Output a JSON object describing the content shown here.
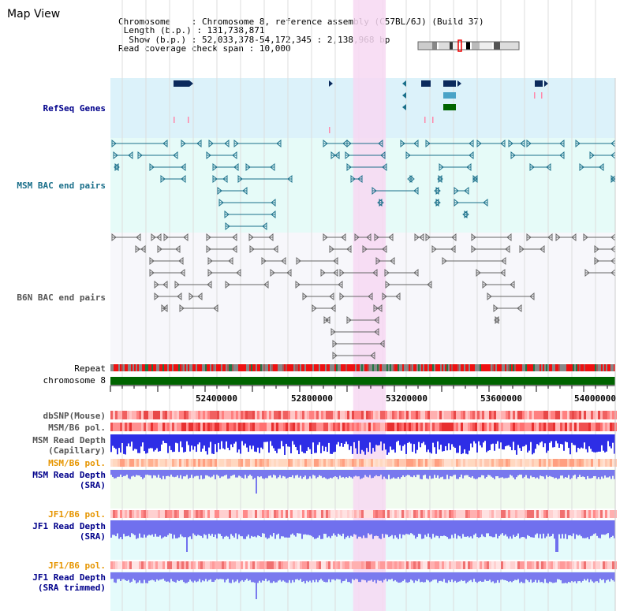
{
  "page": {
    "title": "Map View"
  },
  "header": {
    "chromosome_label": "Chromosome",
    "chromosome_value": "Chromosome 8, reference assembly (C57BL/6J) (Build 37)",
    "length_label": "Length (b.p.)",
    "length_value": "131,738,871",
    "show_label": "Show (b.p.)",
    "show_value": "52,033,378-54,172,345 : 2,138,968 bp",
    "coverage_label": "Read coverage check span",
    "coverage_value": "10,000"
  },
  "tracks": {
    "refseq": "RefSeq Genes",
    "msm_bac": "MSM BAC end pairs",
    "b6n_bac": "B6N BAC end pairs",
    "repeat": "Repeat",
    "chromosome": "chromosome 8",
    "dbsnp": "dbSNP(Mouse)",
    "msm_b6_pol_1": "MSM/B6 pol.",
    "msm_read_depth_cap_1": "MSM Read Depth",
    "msm_read_depth_cap_2": "(Capillary)",
    "msm_b6_pol_2": "MSM/B6 pol.",
    "msm_read_depth_sra_1": "MSM Read Depth",
    "msm_read_depth_sra_2": "(SRA)",
    "jf1_b6_pol_1": "JF1/B6 pol.",
    "jf1_read_depth_sra_1": "JF1 Read Depth",
    "jf1_read_depth_sra_2": "(SRA)",
    "jf1_b6_pol_2": "JF1/B6 pol.",
    "jf1_read_depth_trim_1": "JF1 Read Depth",
    "jf1_read_depth_trim_2": "(SRA trimmed)"
  },
  "axis": {
    "ticks": [
      "52400000",
      "52800000",
      "53200000",
      "53600000",
      "54000000"
    ],
    "start_bp": 52033378,
    "end_bp": 54172345
  },
  "highlight": {
    "start_bp": 53062000,
    "end_bp": 53200000
  },
  "colors": {
    "navy": "#00008b",
    "teal": "#1a6f8a",
    "orange": "#e69500",
    "highlight": "#f7d8f2",
    "refseq_bg": "#dcf2fa",
    "msm_bg": "#e6fbf8",
    "b6n_bg": "#f7f7fb",
    "chromosome_bar": "#006400",
    "depth_blue": "#3333ee"
  }
}
